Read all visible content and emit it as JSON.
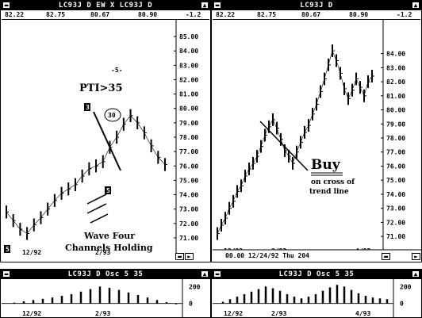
{
  "left_window": {
    "title": "LC93J D EW X LC93J D",
    "header_values": [
      "82.22",
      "82.75",
      "80.67",
      "80.90",
      "-1.2"
    ],
    "annotations": {
      "pti": "PTI>35",
      "wave_count": "-5-",
      "circled": "30",
      "wave_four_line1": "Wave Four",
      "wave_four_line2": "Channels Holding",
      "label_3": "3",
      "label_5": "5",
      "label_5_low": "5"
    }
  },
  "right_window": {
    "title": "LC93J D",
    "header_values": [
      "82.22",
      "82.75",
      "80.67",
      "80.90",
      "-1.2"
    ],
    "footer": "00.00    12/24/92  Thu  204",
    "annotations": {
      "buy": "Buy",
      "buy_sub1": "on cross of",
      "buy_sub2": "trend line"
    }
  },
  "left_osc": {
    "title": "LC93J D Osc 5 35"
  },
  "right_osc": {
    "title": "LC93J D Osc 5 35"
  },
  "chart_data": [
    {
      "type": "line",
      "panel": "left-price",
      "title": "LC93J D EW X LC93J D",
      "ylim": [
        70.5,
        85.5
      ],
      "y_ticks": [
        "85.00",
        "84.00",
        "83.00",
        "82.00",
        "81.00",
        "80.00",
        "79.00",
        "78.00",
        "77.00",
        "76.00",
        "75.00",
        "74.00",
        "73.00",
        "72.00",
        "71.00"
      ],
      "x_ticks": [
        "12/92",
        "2/93"
      ],
      "series": [
        {
          "values": [
            72.8,
            72.2,
            71.6,
            71.3,
            71.9,
            72.4,
            73.0,
            73.6,
            74.1,
            74.4,
            74.7,
            75.3,
            75.8,
            76.0,
            76.3,
            77.3,
            78.0,
            78.9,
            79.5,
            79.0,
            78.3,
            77.4,
            76.6,
            76.1
          ]
        }
      ]
    },
    {
      "type": "line",
      "panel": "right-price",
      "title": "LC93J D",
      "ylim": [
        70.5,
        85.5
      ],
      "y_ticks": [
        "84.00",
        "83.00",
        "82.00",
        "81.00",
        "80.00",
        "79.00",
        "78.00",
        "77.00",
        "76.00",
        "75.00",
        "74.00",
        "73.00",
        "72.00",
        "71.00"
      ],
      "x_ticks": [
        "12/92",
        "2/93",
        "4/93"
      ],
      "series": [
        {
          "values": [
            71.2,
            71.8,
            72.3,
            73.0,
            73.5,
            74.2,
            74.6,
            75.3,
            75.8,
            76.2,
            76.7,
            77.4,
            78.2,
            78.8,
            79.3,
            78.7,
            77.9,
            77.1,
            76.7,
            76.2,
            77.0,
            77.7,
            78.4,
            78.9,
            79.7,
            80.4,
            81.3,
            82.2,
            83.2,
            84.2,
            83.5,
            82.6,
            81.5,
            80.8,
            81.4,
            82.2,
            81.6,
            81.0,
            82.0,
            82.4
          ]
        }
      ]
    },
    {
      "type": "area",
      "panel": "left-osc",
      "title": "LC93J D Osc 5 35",
      "y_ticks": [
        "200",
        "0"
      ],
      "x_ticks": [
        "12/92",
        "2/93"
      ],
      "series": [
        {
          "values": [
            0,
            10,
            25,
            40,
            55,
            70,
            90,
            110,
            140,
            170,
            200,
            185,
            160,
            130,
            100,
            70,
            40,
            15,
            -10
          ]
        }
      ]
    },
    {
      "type": "area",
      "panel": "right-osc",
      "title": "LC93J D Osc 5 35",
      "y_ticks": [
        "200",
        "0"
      ],
      "x_ticks": [
        "12/92",
        "2/93",
        "4/93"
      ],
      "series": [
        {
          "values": [
            0,
            20,
            50,
            80,
            110,
            140,
            170,
            200,
            180,
            150,
            110,
            80,
            60,
            80,
            110,
            150,
            190,
            220,
            200,
            160,
            120,
            90,
            70,
            60,
            50
          ]
        }
      ]
    }
  ]
}
